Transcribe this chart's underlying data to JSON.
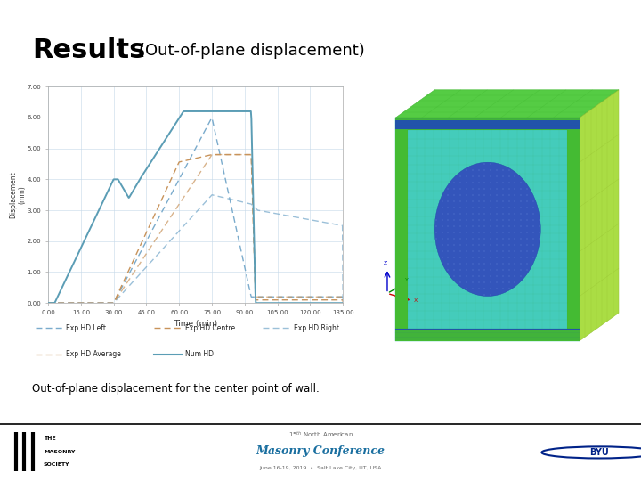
{
  "title_results": "Results",
  "title_sub": "(Out-of-plane displacement)",
  "caption": "Out-of-plane displacement for the center point of wall.",
  "xlabel": "Time (min)",
  "ylabel": "Displacement\n(mm)",
  "ylim": [
    0,
    7.0
  ],
  "xlim": [
    0,
    135
  ],
  "yticks": [
    0.0,
    1.0,
    2.0,
    3.0,
    4.0,
    5.0,
    6.0,
    7.0
  ],
  "xticks": [
    0.0,
    15.0,
    30.0,
    45.0,
    60.0,
    75.0,
    90.0,
    105.0,
    120.0,
    135.0
  ],
  "header_color": "#5b9db5",
  "bg_color": "#ffffff",
  "footer_bar_color": "#111111",
  "color_exp_left": "#7aabcc",
  "color_exp_centre": "#c8935a",
  "color_exp_right": "#7aabcc",
  "color_exp_avg": "#c8935a",
  "color_num": "#5b9db5",
  "legend_entries": [
    "Exp HD Left",
    "Exp HD Centre",
    "Exp HD Right",
    "Exp HD Average",
    "Num HD"
  ]
}
